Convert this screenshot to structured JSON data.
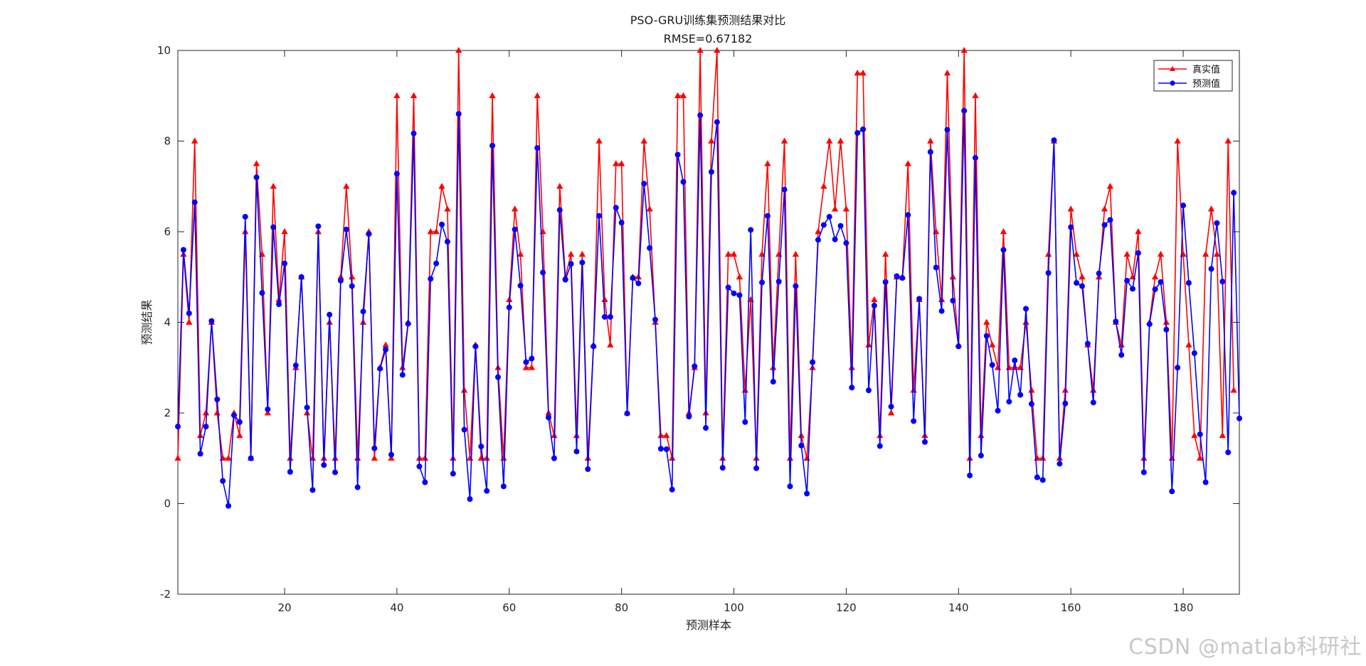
{
  "chart_data": {
    "type": "line",
    "title": "PSO-GRU训练集预测结果对比",
    "subtitle": "RMSE=0.67182",
    "xlabel": "预测样本",
    "ylabel": "预测结果",
    "xlim": [
      1,
      190
    ],
    "ylim": [
      -2,
      10
    ],
    "xticks": [
      20,
      40,
      60,
      80,
      100,
      120,
      140,
      160,
      180
    ],
    "yticks": [
      -2,
      0,
      2,
      4,
      6,
      8,
      10
    ],
    "grid": false,
    "legend_position": "top-right",
    "series": [
      {
        "name": "真实值",
        "color": "#ff0000",
        "marker": "triangle",
        "values": [
          1,
          5.5,
          4,
          8,
          1.5,
          2,
          4,
          2,
          1,
          1,
          2,
          1.5,
          6,
          1,
          7.5,
          5.5,
          2,
          7,
          4.5,
          6,
          1,
          3,
          5,
          2,
          1,
          6,
          1,
          4,
          1,
          5,
          7,
          5,
          1,
          4,
          6,
          1,
          3,
          3.5,
          1,
          9,
          3,
          4,
          9,
          1,
          1,
          6,
          6,
          7,
          6.5,
          1,
          10,
          2.5,
          1,
          3.5,
          1,
          1,
          9,
          3,
          1,
          4.5,
          6.5,
          5.5,
          3,
          3,
          9,
          6,
          2,
          1.5,
          7,
          5,
          5.5,
          1.5,
          5.5,
          1,
          3.5,
          8,
          4.5,
          3.5,
          7.5,
          7.5,
          2,
          5,
          5,
          8,
          6.5,
          4,
          1.5,
          1.5,
          1,
          9,
          9,
          2,
          3,
          10,
          2,
          8,
          10,
          1,
          5.5,
          5.5,
          5,
          2.5,
          4.5,
          1,
          5.5,
          7.5,
          3,
          5.5,
          8,
          1,
          5.5,
          1.5,
          1,
          3,
          6,
          7,
          8,
          6.5,
          8,
          6.5,
          3,
          9.5,
          9.5,
          3.5,
          4.5,
          1.5,
          5.5,
          2,
          5,
          5,
          7.5,
          2.5,
          4.5,
          1.5,
          8,
          6,
          4.5,
          9.5,
          5,
          3.5,
          10,
          1,
          9,
          1.5,
          4,
          3.5,
          3,
          6,
          3,
          3,
          3,
          4,
          2.5,
          1,
          1,
          5.5,
          8,
          1,
          2.5,
          6.5,
          5.5,
          5,
          3.5,
          2.5,
          5,
          6.5,
          7,
          4,
          3.5,
          5.5,
          5,
          6,
          1,
          4,
          5,
          5.5,
          4,
          1,
          8,
          5.5,
          3.5,
          1.5,
          1,
          5.5,
          6.5,
          5.5,
          1.5,
          8,
          2.5
        ]
      },
      {
        "name": "预测值",
        "color": "#0000ff",
        "marker": "circle",
        "values": [
          1.7,
          5.6,
          4.2,
          6.65,
          1.1,
          1.7,
          4.03,
          2.3,
          0.5,
          -0.05,
          1.95,
          1.8,
          6.33,
          1,
          7.2,
          4.65,
          2.08,
          6.1,
          4.4,
          5.3,
          0.7,
          3.05,
          5,
          2.12,
          0.3,
          6.12,
          0.85,
          4.17,
          0.69,
          4.92,
          6.05,
          4.8,
          0.36,
          4.24,
          5.95,
          1.22,
          2.98,
          3.4,
          1.08,
          7.28,
          2.84,
          3.97,
          8.17,
          0.82,
          0.47,
          4.96,
          5.3,
          6.16,
          5.78,
          0.66,
          8.6,
          1.63,
          0.1,
          3.47,
          1.26,
          0.28,
          7.9,
          2.79,
          0.38,
          4.33,
          6.05,
          4.81,
          3.12,
          3.2,
          7.85,
          5.1,
          1.9,
          1,
          6.48,
          4.94,
          5.29,
          1.15,
          5.32,
          0.76,
          3.47,
          6.35,
          4.12,
          4.12,
          6.53,
          6.2,
          1.99,
          4.98,
          4.86,
          7.06,
          5.64,
          4.06,
          1.21,
          1.2,
          0.31,
          7.7,
          7.1,
          1.92,
          3.03,
          8.57,
          1.67,
          7.32,
          8.42,
          0.79,
          4.77,
          4.64,
          4.6,
          1.8,
          6.04,
          0.78,
          4.88,
          6.35,
          2.69,
          4.9,
          6.93,
          0.38,
          4.8,
          1.28,
          0.22,
          3.12,
          5.82,
          6.15,
          6.33,
          5.83,
          6.13,
          5.75,
          2.56,
          8.18,
          8.26,
          2.5,
          4.37,
          1.27,
          4.89,
          2.14,
          5.02,
          4.98,
          6.37,
          1.82,
          4.52,
          1.36,
          7.76,
          5.21,
          4.25,
          8.25,
          4.48,
          3.47,
          8.67,
          0.62,
          7.63,
          1.06,
          3.7,
          3.06,
          2.05,
          5.6,
          2.25,
          3.16,
          2.4,
          4.3,
          2.2,
          0.58,
          0.52,
          5.09,
          8.02,
          0.88,
          2.21,
          6.1,
          4.87,
          4.8,
          3.53,
          2.23,
          5.08,
          6.15,
          6.26,
          4.02,
          3.28,
          4.92,
          4.74,
          5.53,
          0.69,
          3.96,
          4.73,
          4.89,
          3.84,
          0.27,
          3,
          6.58,
          4.87,
          3.32,
          1.53,
          0.47,
          5.18,
          6.19,
          4.9,
          1.13,
          6.86,
          1.88
        ]
      }
    ]
  },
  "watermark": "CSDN @matlab科研社"
}
